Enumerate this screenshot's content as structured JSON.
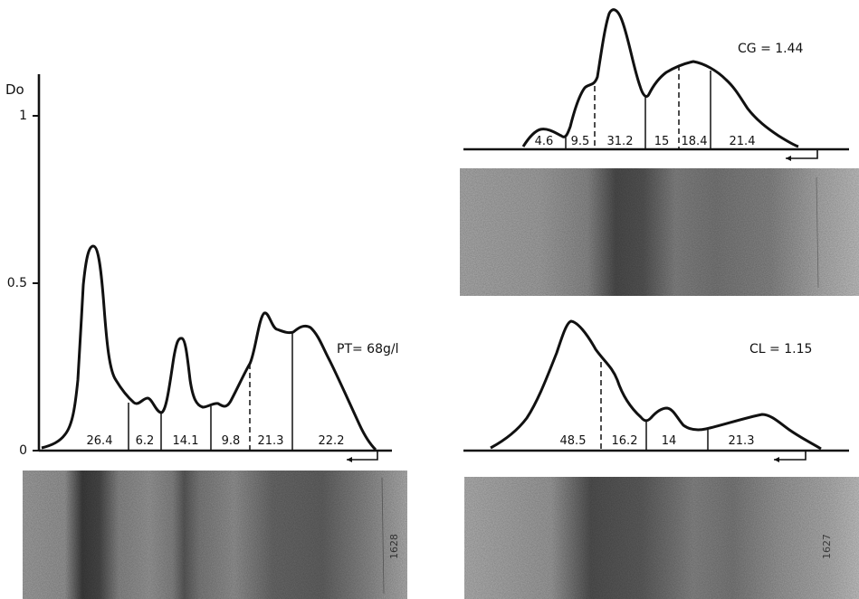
{
  "chart_data": [
    {
      "type": "area",
      "panel": "main",
      "y_axis_label": "Do",
      "y_ticks": [
        {
          "label": "0",
          "value": 0
        },
        {
          "label": "0.5",
          "value": 0.5
        },
        {
          "label": "1",
          "value": 1
        }
      ],
      "ylim": [
        0,
        1.1
      ],
      "annotation": "PT= 68g/l",
      "fractions": [
        "26.4",
        "6.2",
        "14.1",
        "9.8",
        "21.3",
        "22.2"
      ],
      "fraction_separators": [
        {
          "style": "solid"
        },
        {
          "style": "solid"
        },
        {
          "style": "solid"
        },
        {
          "style": "dashed"
        },
        {
          "style": "solid"
        }
      ],
      "peaks_do": [
        0.62,
        0.16,
        0.34,
        0.41,
        0.38
      ],
      "strip_label": "1628"
    },
    {
      "type": "area",
      "panel": "top-right",
      "annotation": "CG = 1.44",
      "fractions": [
        "4.6",
        "9.5",
        "31.2",
        "15",
        "18.4",
        "21.4"
      ],
      "fraction_separators": [
        {
          "style": "solid"
        },
        {
          "style": "dashed"
        },
        {
          "style": "solid"
        },
        {
          "style": "dashed"
        },
        {
          "style": "solid"
        }
      ]
    },
    {
      "type": "area",
      "panel": "bottom-right",
      "annotation": "CL = 1.15",
      "fractions": [
        "48.5",
        "16.2",
        "14",
        "21.3"
      ],
      "fraction_separators": [
        {
          "style": "dashed"
        },
        {
          "style": "solid"
        },
        {
          "style": "solid"
        }
      ],
      "strip_label": "1627"
    }
  ]
}
